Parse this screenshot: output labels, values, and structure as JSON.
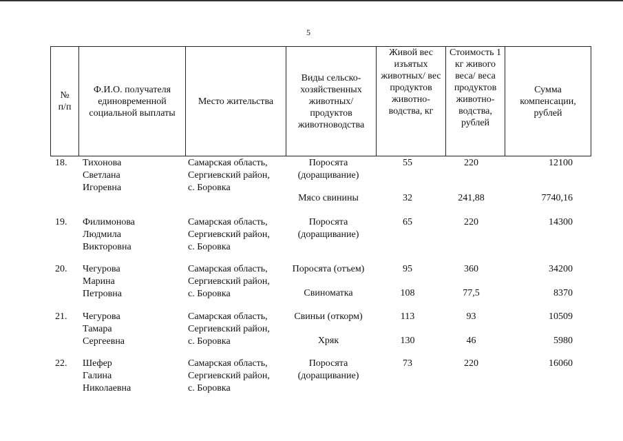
{
  "page_number": "5",
  "headers": [
    "№\nп/п",
    "Ф.И.О. получателя единовременной социальной выплаты",
    "Место жительства",
    "Виды сельско-хозяйственных животных/ продуктов животноводства",
    "Живой вес изъятых животных/ вес продуктов животно-водства, кг",
    "Стоимость 1 кг живого веса/ веса продуктов животно-водства, рублей",
    "Сумма компенсации, рублей"
  ],
  "rows": [
    {
      "num": "18.",
      "name": "Тихонова\nСветлана\nИгоревна",
      "place": "Самарская область,\nСергиевский район,\nс. Боровка",
      "items": [
        {
          "kind": "Поросята\n(доращивание)",
          "weight": "55",
          "price": "220",
          "sum": "12100"
        },
        {
          "kind": "Мясо свинины",
          "weight": "32",
          "price": "241,88",
          "sum": "7740,16"
        }
      ]
    },
    {
      "num": "19.",
      "name": "Филимонова\nЛюдмила\nВикторовна",
      "place": "Самарская область,\nСергиевский район,\nс. Боровка",
      "items": [
        {
          "kind": "Поросята\n(доращивание)",
          "weight": "65",
          "price": "220",
          "sum": "14300"
        }
      ]
    },
    {
      "num": "20.",
      "name": "Чегурова\nМарина\nПетровна",
      "place": "Самарская область,\nСергиевский район,\nс. Боровка",
      "items": [
        {
          "kind": "Поросята (отъем)",
          "weight": "95",
          "price": "360",
          "sum": "34200"
        },
        {
          "kind": "Свиноматка",
          "weight": "108",
          "price": "77,5",
          "sum": "8370"
        }
      ]
    },
    {
      "num": "21.",
      "name": "Чегурова\nТамара\nСергеевна",
      "place": "Самарская область,\nСергиевский район,\nс. Боровка",
      "items": [
        {
          "kind": "Свиньи (откорм)",
          "weight": "113",
          "price": "93",
          "sum": "10509"
        },
        {
          "kind": "Хряк",
          "weight": "130",
          "price": "46",
          "sum": "5980"
        }
      ]
    },
    {
      "num": "22.",
      "name": "Шефер\nГалина\nНиколаевна",
      "place": "Самарская область,\nСергиевский район,\nс. Боровка",
      "items": [
        {
          "kind": "Поросята\n(доращивание)",
          "weight": "73",
          "price": "220",
          "sum": "16060"
        }
      ]
    }
  ]
}
